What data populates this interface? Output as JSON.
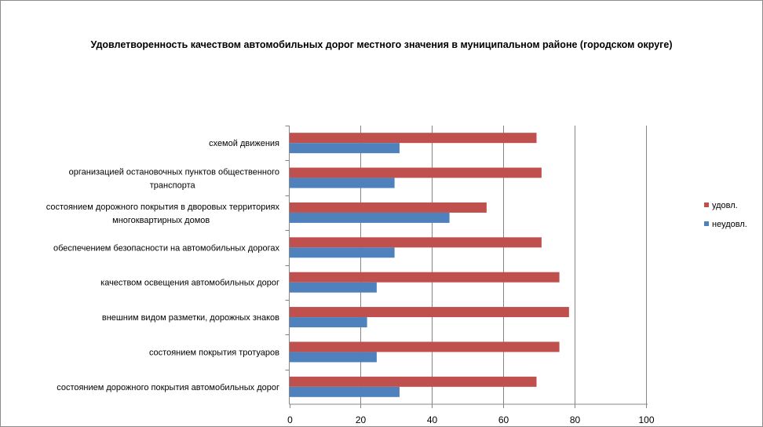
{
  "chart_data": {
    "type": "bar",
    "orientation": "horizontal",
    "title": "Удовлетворенность качеством автомобильных дорог местного значения в муниципальном районе (городском округе)",
    "categories": [
      [
        "схемой движения"
      ],
      [
        "организацией остановочных пунктов общественного",
        "транспорта"
      ],
      [
        "состоянием дорожного покрытия в дворовых территориях",
        "многоквартирных домов"
      ],
      [
        "обеспечением  безопасности на автомобильных дорогах"
      ],
      [
        "качеством освещения  автомобильных дорог"
      ],
      [
        "внешним  видом разметки, дорожных знаков"
      ],
      [
        "состоянием покрытия тротуаров"
      ],
      [
        "состоянием дорожного покрытия автомобильных дорог"
      ]
    ],
    "series": [
      {
        "name": "удовл.",
        "color": "#c0504d",
        "values": [
          69.2,
          70.6,
          55.2,
          70.6,
          75.6,
          78.3,
          75.6,
          69.2
        ]
      },
      {
        "name": "неудовл.",
        "color": "#4f81bd",
        "values": [
          30.8,
          29.4,
          44.8,
          29.4,
          24.4,
          21.7,
          24.4,
          30.8
        ]
      }
    ],
    "xlim": [
      0,
      100
    ],
    "xticks": [
      "0",
      "20",
      "40",
      "60",
      "80",
      "100"
    ],
    "grid": true,
    "legend": "right"
  }
}
